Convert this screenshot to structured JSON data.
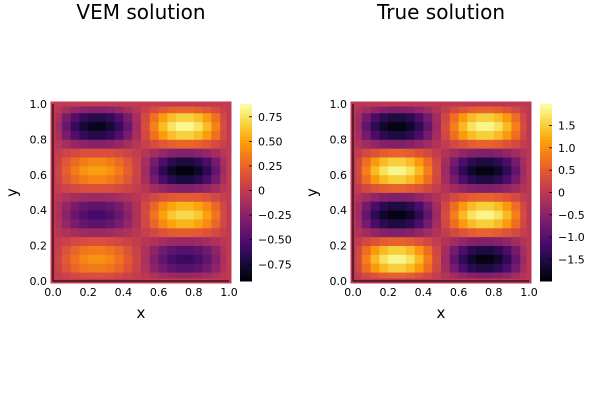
{
  "chart_data": [
    {
      "type": "heatmap",
      "title": "VEM solution",
      "xlabel": "x",
      "ylabel": "y",
      "xlim": [
        0.0,
        1.0
      ],
      "ylim": [
        0.0,
        1.0
      ],
      "x_ticks": [
        "0.0",
        "0.2",
        "0.4",
        "0.6",
        "0.8",
        "1.0"
      ],
      "y_ticks": [
        "0.0",
        "0.2",
        "0.4",
        "0.6",
        "0.8",
        "1.0"
      ],
      "colorbar": {
        "colormap": "inferno",
        "range": [
          -0.92,
          0.88
        ],
        "ticks": [
          "0.75",
          "0.50",
          "0.25",
          "0",
          "−0.25",
          "−0.50",
          "−0.75"
        ],
        "tick_values": [
          0.75,
          0.5,
          0.25,
          0,
          -0.25,
          -0.5,
          -0.75
        ]
      },
      "grid": {
        "nx": 20,
        "ny": 20,
        "description_note_free": true,
        "quadrant_peaks": [
          {
            "x_center": 0.25,
            "y_center": 0.125,
            "value": 0.45
          },
          {
            "x_center": 0.75,
            "y_center": 0.125,
            "value": -0.6
          },
          {
            "x_center": 0.25,
            "y_center": 0.375,
            "value": -0.55
          },
          {
            "x_center": 0.75,
            "y_center": 0.375,
            "value": 0.72
          },
          {
            "x_center": 0.25,
            "y_center": 0.625,
            "value": 0.5
          },
          {
            "x_center": 0.75,
            "y_center": 0.625,
            "value": -0.9
          },
          {
            "x_center": 0.25,
            "y_center": 0.875,
            "value": -0.85
          },
          {
            "x_center": 0.75,
            "y_center": 0.875,
            "value": 0.85
          }
        ]
      }
    },
    {
      "type": "heatmap",
      "title": "True solution",
      "xlabel": "x",
      "ylabel": "y",
      "xlim": [
        0.0,
        1.0
      ],
      "ylim": [
        0.0,
        1.0
      ],
      "x_ticks": [
        "0.0",
        "0.2",
        "0.4",
        "0.6",
        "0.8",
        "1.0"
      ],
      "y_ticks": [
        "0.0",
        "0.2",
        "0.4",
        "0.6",
        "0.8",
        "1.0"
      ],
      "colorbar": {
        "colormap": "inferno",
        "range": [
          -1.98,
          1.98
        ],
        "ticks": [
          "1.5",
          "1.0",
          "0.5",
          "0",
          "−0.5",
          "−1.0",
          "−1.5"
        ],
        "tick_values": [
          1.5,
          1.0,
          0.5,
          0,
          -0.5,
          -1.0,
          -1.5
        ]
      },
      "grid": {
        "nx": 20,
        "ny": 20,
        "quadrant_peaks": [
          {
            "x_center": 0.25,
            "y_center": 0.125,
            "value": 1.9
          },
          {
            "x_center": 0.75,
            "y_center": 0.125,
            "value": -1.9
          },
          {
            "x_center": 0.25,
            "y_center": 0.375,
            "value": -1.9
          },
          {
            "x_center": 0.75,
            "y_center": 0.375,
            "value": 1.9
          },
          {
            "x_center": 0.25,
            "y_center": 0.625,
            "value": 1.9
          },
          {
            "x_center": 0.75,
            "y_center": 0.625,
            "value": -1.9
          },
          {
            "x_center": 0.25,
            "y_center": 0.875,
            "value": -1.9
          },
          {
            "x_center": 0.75,
            "y_center": 0.875,
            "value": 1.9
          }
        ]
      }
    }
  ]
}
